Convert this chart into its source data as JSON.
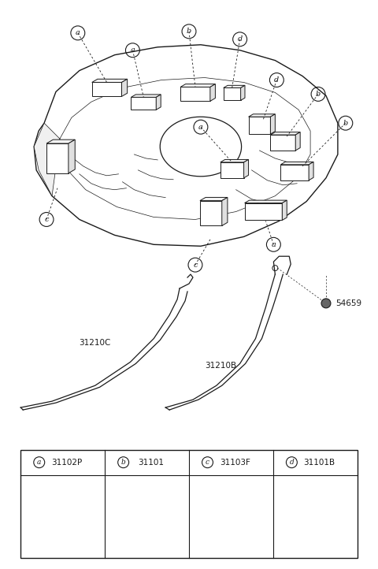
{
  "bg_color": "#ffffff",
  "line_color": "#1a1a1a",
  "lw": 0.9,
  "legend_items": [
    {
      "letter": "a",
      "part_num": "31102P"
    },
    {
      "letter": "b",
      "part_num": "31101"
    },
    {
      "letter": "c",
      "part_num": "31103F"
    },
    {
      "letter": "d",
      "part_num": "31101B"
    }
  ]
}
